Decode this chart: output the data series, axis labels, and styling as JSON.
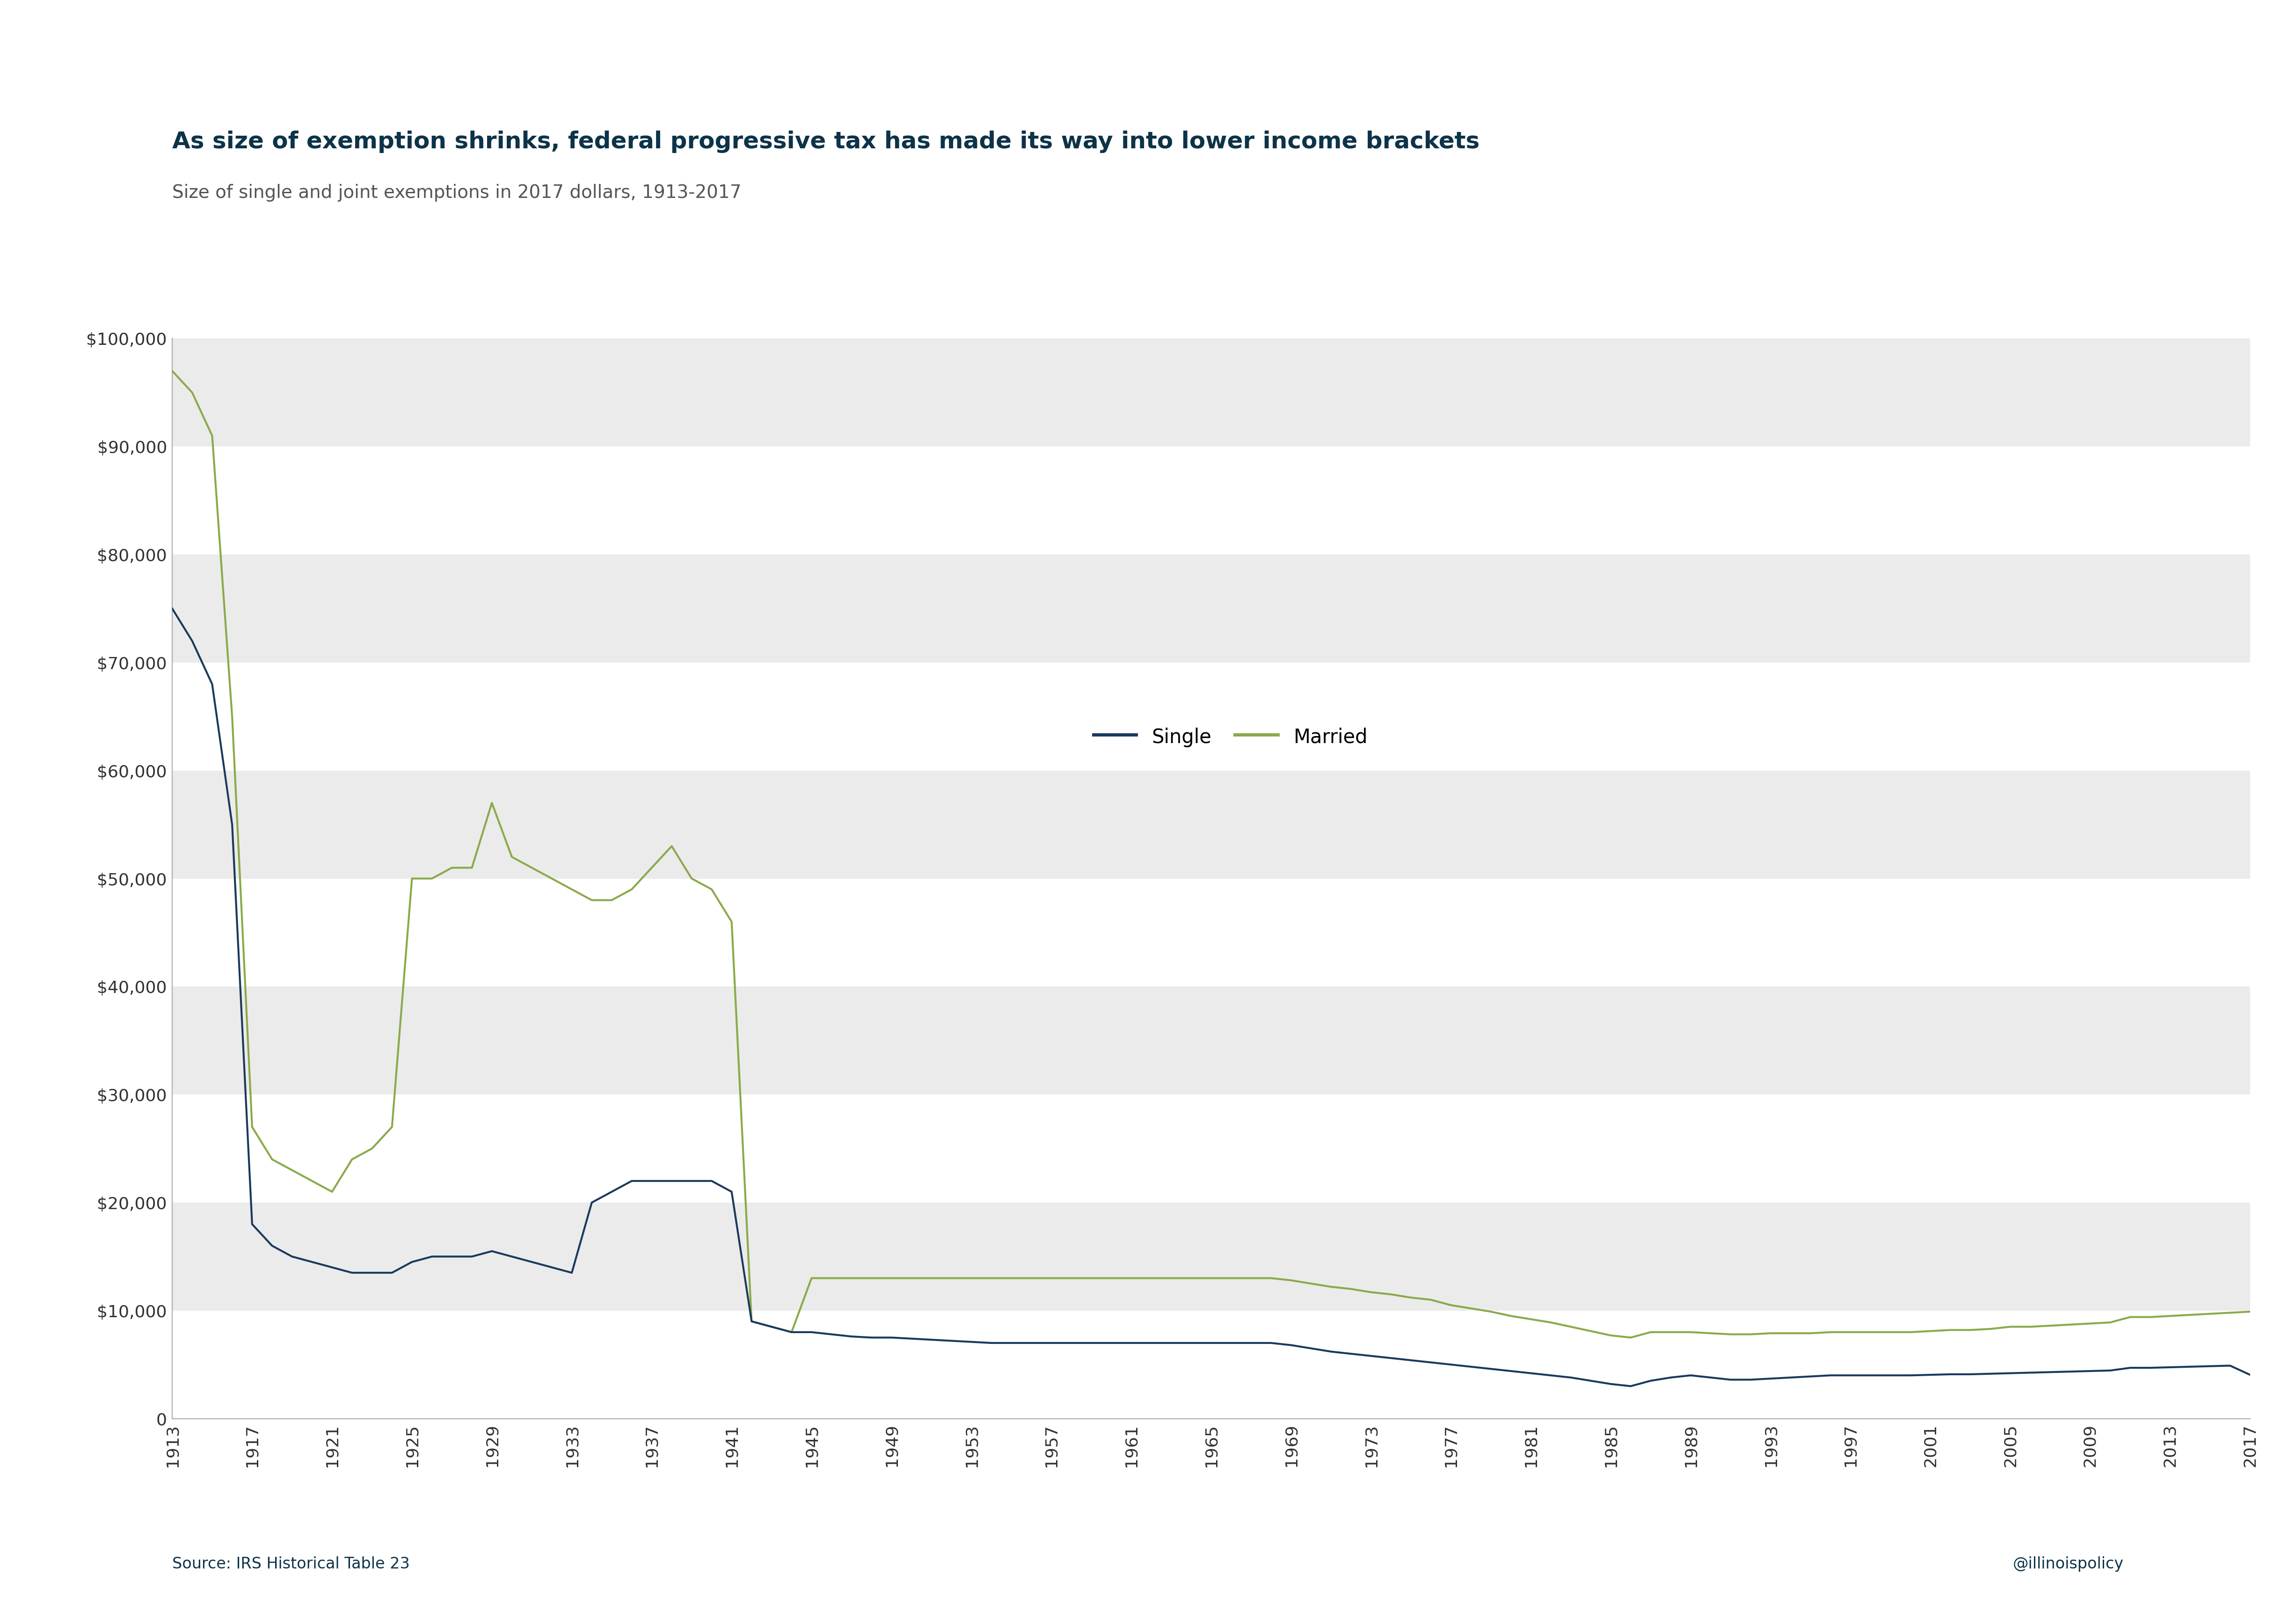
{
  "title": "As size of exemption shrinks, federal progressive tax has made its way into lower income brackets",
  "subtitle": "Size of single and joint exemptions in 2017 dollars, 1913-2017",
  "source": "Source: IRS Historical Table 23",
  "attribution": "@illinoispolicy",
  "title_color": "#0d3349",
  "subtitle_color": "#555555",
  "background_color": "#ffffff",
  "plot_bg_color": "#ffffff",
  "single_color": "#1a3a5c",
  "married_color": "#8aaa4a",
  "ylim": [
    0,
    100000
  ],
  "yticks": [
    0,
    10000,
    20000,
    30000,
    40000,
    50000,
    60000,
    70000,
    80000,
    90000,
    100000
  ],
  "band_color": "#ebebeb",
  "years": [
    1913,
    1914,
    1915,
    1916,
    1917,
    1918,
    1919,
    1920,
    1921,
    1922,
    1923,
    1924,
    1925,
    1926,
    1927,
    1928,
    1929,
    1930,
    1931,
    1932,
    1933,
    1934,
    1935,
    1936,
    1937,
    1938,
    1939,
    1940,
    1941,
    1942,
    1943,
    1944,
    1945,
    1946,
    1947,
    1948,
    1949,
    1950,
    1951,
    1952,
    1953,
    1954,
    1955,
    1956,
    1957,
    1958,
    1959,
    1960,
    1961,
    1962,
    1963,
    1964,
    1965,
    1966,
    1967,
    1968,
    1969,
    1970,
    1971,
    1972,
    1973,
    1974,
    1975,
    1976,
    1977,
    1978,
    1979,
    1980,
    1981,
    1982,
    1983,
    1984,
    1985,
    1986,
    1987,
    1988,
    1989,
    1990,
    1991,
    1992,
    1993,
    1994,
    1995,
    1996,
    1997,
    1998,
    1999,
    2000,
    2001,
    2002,
    2003,
    2004,
    2005,
    2006,
    2007,
    2008,
    2009,
    2010,
    2011,
    2012,
    2013,
    2014,
    2015,
    2016,
    2017
  ],
  "single": [
    75000,
    72000,
    68000,
    55000,
    18000,
    16000,
    15000,
    14500,
    14000,
    13500,
    13500,
    13500,
    14500,
    15000,
    15000,
    15000,
    15500,
    15000,
    14500,
    14000,
    13500,
    20000,
    21000,
    22000,
    22000,
    22000,
    22000,
    22000,
    21000,
    9000,
    8500,
    8000,
    8000,
    7800,
    7600,
    7500,
    7500,
    7400,
    7300,
    7200,
    7100,
    7000,
    7000,
    7000,
    7000,
    7000,
    7000,
    7000,
    7000,
    7000,
    7000,
    7000,
    7000,
    7000,
    7000,
    7000,
    6800,
    6500,
    6200,
    6000,
    5800,
    5600,
    5400,
    5200,
    5000,
    4800,
    4600,
    4400,
    4200,
    4000,
    3800,
    3500,
    3200,
    3000,
    3500,
    3800,
    4000,
    3800,
    3600,
    3600,
    3700,
    3800,
    3900,
    4000,
    4000,
    4000,
    4000,
    4000,
    4050,
    4100,
    4100,
    4150,
    4200,
    4250,
    4300,
    4350,
    4400,
    4450,
    4700,
    4700,
    4750,
    4800,
    4850,
    4900,
    4050
  ],
  "married": [
    97000,
    95000,
    91000,
    65000,
    27000,
    24000,
    23000,
    22000,
    21000,
    24000,
    25000,
    27000,
    50000,
    50000,
    51000,
    51000,
    57000,
    52000,
    51000,
    50000,
    49000,
    48000,
    48000,
    49000,
    51000,
    53000,
    50000,
    49000,
    46000,
    9000,
    8500,
    8000,
    13000,
    13000,
    13000,
    13000,
    13000,
    13000,
    13000,
    13000,
    13000,
    13000,
    13000,
    13000,
    13000,
    13000,
    13000,
    13000,
    13000,
    13000,
    13000,
    13000,
    13000,
    13000,
    13000,
    13000,
    12800,
    12500,
    12200,
    12000,
    11700,
    11500,
    11200,
    11000,
    10500,
    10200,
    9900,
    9500,
    9200,
    8900,
    8500,
    8100,
    7700,
    7500,
    8000,
    8000,
    8000,
    7900,
    7800,
    7800,
    7900,
    7900,
    7900,
    8000,
    8000,
    8000,
    8000,
    8000,
    8100,
    8200,
    8200,
    8300,
    8500,
    8500,
    8600,
    8700,
    8800,
    8900,
    9400,
    9400,
    9500,
    9600,
    9700,
    9800,
    9900
  ],
  "xtick_years": [
    1913,
    1917,
    1921,
    1925,
    1929,
    1933,
    1937,
    1941,
    1945,
    1949,
    1953,
    1957,
    1961,
    1965,
    1969,
    1973,
    1977,
    1981,
    1985,
    1989,
    1993,
    1997,
    2001,
    2005,
    2009,
    2013,
    2017
  ]
}
